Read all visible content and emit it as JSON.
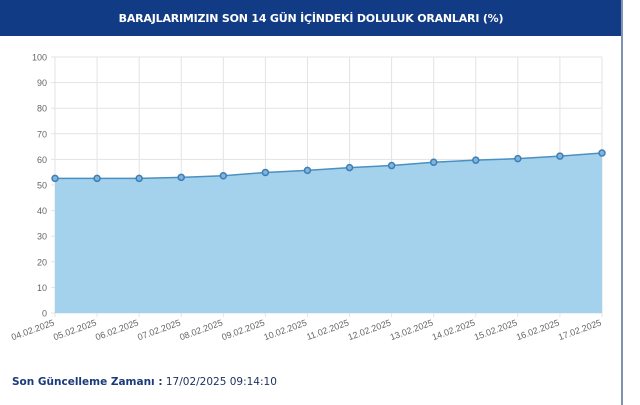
{
  "chart_data": {
    "type": "area",
    "title": "BARAJLARIMIZIN SON 14 GÜN İÇİNDEKİ DOLULUK ORANLARI (%)",
    "xlabel": "",
    "ylabel": "",
    "categories": [
      "04.02.2025",
      "05.02.2025",
      "06.02.2025",
      "07.02.2025",
      "08.02.2025",
      "09.02.2025",
      "10.02.2025",
      "11.02.2025",
      "12.02.2025",
      "13.02.2025",
      "14.02.2025",
      "15.02.2025",
      "16.02.2025",
      "17.02.2025"
    ],
    "values": [
      52.6,
      52.6,
      52.6,
      53.0,
      53.6,
      54.9,
      55.7,
      56.8,
      57.6,
      58.9,
      59.7,
      60.3,
      61.3,
      62.5
    ],
    "ylim": [
      0,
      100
    ],
    "yticks": [
      "0",
      "10",
      "20",
      "30",
      "40",
      "50",
      "60",
      "70",
      "80",
      "90",
      "100"
    ],
    "grid": true,
    "legend": "none",
    "colors": {
      "fill": "#9fd0ec",
      "line": "#4a90c2",
      "point": "#3d7fb5",
      "header": "#123b85"
    }
  },
  "footer": {
    "label": "Son Güncelleme Zamanı :",
    "value": "17/02/2025 09:14:10"
  }
}
